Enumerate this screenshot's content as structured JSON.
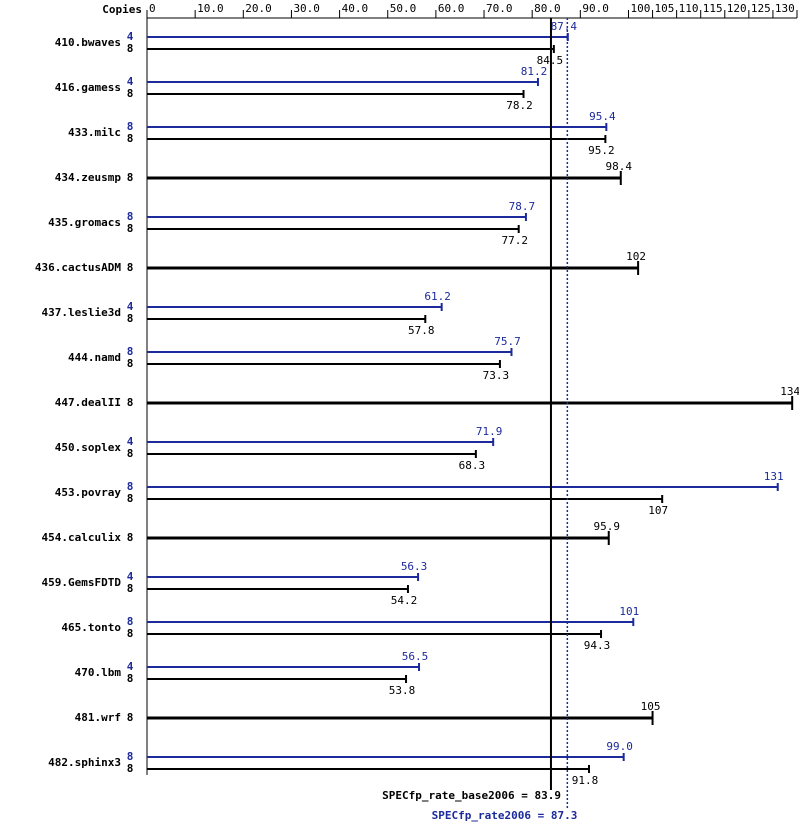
{
  "chart_data": {
    "type": "spec-bar",
    "x_axis_label": "Copies",
    "xlim": [
      0,
      135
    ],
    "xticks": [
      0,
      {
        "value": 10,
        "label": "10.0"
      },
      {
        "value": 20,
        "label": "20.0"
      },
      {
        "value": 30,
        "label": "30.0"
      },
      {
        "value": 40,
        "label": "40.0"
      },
      {
        "value": 50,
        "label": "50.0"
      },
      {
        "value": 60,
        "label": "60.0"
      },
      {
        "value": 70,
        "label": "70.0"
      },
      {
        "value": 80,
        "label": "80.0"
      },
      {
        "value": 90,
        "label": "90.0"
      },
      100,
      105,
      110,
      115,
      120,
      125,
      130,
      135
    ],
    "categories": [
      "410.bwaves",
      "416.gamess",
      "433.milc",
      "434.zeusmp",
      "435.gromacs",
      "436.cactusADM",
      "437.leslie3d",
      "444.namd",
      "447.dealII",
      "450.soplex",
      "453.povray",
      "454.calculix",
      "459.GemsFDTD",
      "465.tonto",
      "470.lbm",
      "481.wrf",
      "482.sphinx3"
    ],
    "series": [
      {
        "name": "peak",
        "color": "#1c2a9c",
        "copies": [
          4,
          4,
          8,
          null,
          8,
          null,
          4,
          8,
          null,
          4,
          8,
          null,
          4,
          8,
          4,
          null,
          8
        ],
        "values": [
          87.4,
          81.2,
          95.4,
          null,
          78.7,
          null,
          61.2,
          75.7,
          null,
          71.9,
          131,
          null,
          56.3,
          101,
          56.5,
          null,
          99.0
        ],
        "value_labels": [
          "87.4",
          "81.2",
          "95.4",
          null,
          "78.7",
          null,
          "61.2",
          "75.7",
          null,
          "71.9",
          "131",
          null,
          "56.3",
          "101",
          "56.5",
          null,
          "99.0"
        ]
      },
      {
        "name": "base",
        "color": "#000000",
        "copies": [
          8,
          8,
          8,
          8,
          8,
          8,
          8,
          8,
          8,
          8,
          8,
          8,
          8,
          8,
          8,
          8,
          8
        ],
        "values": [
          84.5,
          78.2,
          95.2,
          98.4,
          77.2,
          102,
          57.8,
          73.3,
          134,
          68.3,
          107,
          95.9,
          54.2,
          94.3,
          53.8,
          105,
          91.8
        ]
      }
    ],
    "reference_lines": [
      {
        "label": "SPECfp_rate_base2006 = 83.9",
        "value": 83.9,
        "color": "#000000"
      },
      {
        "label": "SPECfp_rate2006 = 87.3",
        "value": 87.3,
        "color": "#1c2a9c"
      }
    ]
  }
}
